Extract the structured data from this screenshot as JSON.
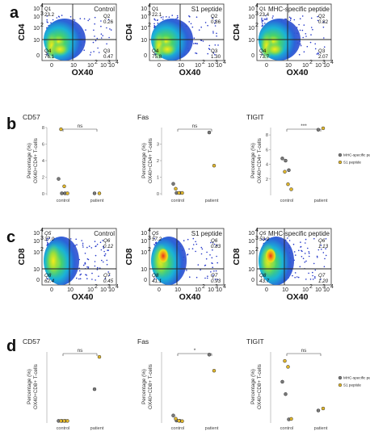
{
  "chart_data": [
    {
      "type": "scatter",
      "panel": "a",
      "y_marker": "CD4",
      "xlabel": "OX40",
      "x_ticks": [
        "0",
        "10",
        "10",
        "10",
        "10"
      ],
      "x_tick_sups": [
        "",
        "",
        "2",
        "3",
        "4"
      ],
      "y_ticks": [
        "0",
        "10",
        "10",
        "10",
        "10"
      ],
      "y_tick_sups": [
        "",
        "",
        "2",
        "3",
        "4"
      ],
      "plots": [
        {
          "title": "Control",
          "quadrants": [
            {
              "name": "Q1",
              "value": "23.2"
            },
            {
              "name": "Q2",
              "value": "0.26"
            },
            {
              "name": "Q3",
              "value": "0.47"
            },
            {
              "name": "Q4",
              "value": "76.1"
            }
          ]
        },
        {
          "title": "S1 peptide",
          "quadrants": [
            {
              "name": "Q1",
              "value": "22.1"
            },
            {
              "name": "Q2",
              "value": "0.86"
            },
            {
              "name": "Q3",
              "value": "1.30"
            },
            {
              "name": "Q4",
              "value": "75.8"
            }
          ]
        },
        {
          "title": "MHC-specific peptide",
          "quadrants": [
            {
              "name": "Q1",
              "value": "23.4"
            },
            {
              "name": "Q2",
              "value": "0.82"
            },
            {
              "name": "Q3",
              "value": "2.07"
            },
            {
              "name": "Q4",
              "value": "73.7"
            }
          ]
        }
      ]
    },
    {
      "type": "scatter",
      "panel": "b",
      "categories": [
        "control",
        "patient"
      ],
      "legend": [
        "MHC-specific peptide",
        "S1 peptide"
      ],
      "series_colors": [
        "#7a7a7a",
        "#e3b82b"
      ],
      "plots": [
        {
          "title": "CD57",
          "ylabel_line1": "Percentage (%)",
          "ylabel_line2": "OX40+CD4+ T-cells",
          "ylim": [
            0,
            8
          ],
          "yticks": [
            0,
            2,
            4,
            6,
            8
          ],
          "significance": "ns",
          "series": [
            {
              "name": "MHC-specific peptide",
              "points": [
                [
                  0,
                  1.8
                ],
                [
                  0,
                  0.05
                ],
                [
                  0,
                  0.05
                ],
                [
                  1,
                  0.05
                ]
              ]
            },
            {
              "name": "S1 peptide",
              "points": [
                [
                  0,
                  7.8
                ],
                [
                  0,
                  0.9
                ],
                [
                  0,
                  0.05
                ],
                [
                  1,
                  0.05
                ]
              ]
            }
          ]
        },
        {
          "title": "Fas",
          "ylabel_line1": "Percentage (%)",
          "ylabel_line2": "OX40+CD4+ T-cells",
          "ylim": [
            0,
            4
          ],
          "yticks": [
            0,
            1,
            2,
            3
          ],
          "significance": "ns",
          "series": [
            {
              "name": "MHC-specific peptide",
              "points": [
                [
                  0,
                  0.6
                ],
                [
                  0,
                  0.05
                ],
                [
                  0,
                  0.05
                ],
                [
                  1,
                  3.7
                ]
              ]
            },
            {
              "name": "S1 peptide",
              "points": [
                [
                  0,
                  0.3
                ],
                [
                  0,
                  0.05
                ],
                [
                  0,
                  0.05
                ],
                [
                  1,
                  1.7
                ]
              ]
            }
          ]
        },
        {
          "title": "TIGIT",
          "ylabel_line1": "Percentage (%)",
          "ylabel_line2": "OX40+CD4+ T-cells",
          "ylim": [
            0,
            9
          ],
          "yticks": [
            2,
            4,
            6,
            8
          ],
          "significance": "***",
          "series": [
            {
              "name": "MHC-specific peptide",
              "points": [
                [
                  0,
                  4.8
                ],
                [
                  0,
                  4.5
                ],
                [
                  0,
                  3.2
                ],
                [
                  1,
                  8.7
                ]
              ]
            },
            {
              "name": "S1 peptide",
              "points": [
                [
                  0,
                  3.0
                ],
                [
                  0,
                  1.3
                ],
                [
                  0,
                  0.6
                ],
                [
                  1,
                  8.9
                ]
              ]
            }
          ]
        }
      ]
    },
    {
      "type": "scatter",
      "panel": "c",
      "y_marker": "CD8",
      "xlabel": "OX40",
      "x_ticks": [
        "0",
        "10",
        "10",
        "10",
        "10"
      ],
      "x_tick_sups": [
        "",
        "",
        "2",
        "3",
        "4"
      ],
      "y_ticks": [
        "0",
        "10",
        "10",
        "10",
        "10"
      ],
      "y_tick_sups": [
        "",
        "",
        "2",
        "3",
        "4"
      ],
      "plots": [
        {
          "title": "Control",
          "quadrants": [
            {
              "name": "Q5",
              "value": "37.0"
            },
            {
              "name": "Q6",
              "value": "0.12"
            },
            {
              "name": "Q7",
              "value": "0.45"
            },
            {
              "name": "Q8",
              "value": "62.4"
            }
          ]
        },
        {
          "title": "S1 peptide",
          "quadrants": [
            {
              "name": "Q5",
              "value": "57.2"
            },
            {
              "name": "Q6",
              "value": "0.83"
            },
            {
              "name": "Q7",
              "value": "0.93"
            },
            {
              "name": "Q8",
              "value": "41.1"
            }
          ]
        },
        {
          "title": "MHC-specific peptide",
          "quadrants": [
            {
              "name": "Q5",
              "value": "53.9"
            },
            {
              "name": "Q6",
              "value": "1.13"
            },
            {
              "name": "Q7",
              "value": "1.20"
            },
            {
              "name": "Q8",
              "value": "43.7"
            }
          ]
        }
      ]
    },
    {
      "type": "scatter",
      "panel": "d",
      "categories": [
        "control",
        "patient"
      ],
      "legend": [
        "MHC-specific peptide",
        "S1 peptide"
      ],
      "series_colors": [
        "#7a7a7a",
        "#e3b82b"
      ],
      "plots": [
        {
          "title": "CD57",
          "ylabel_line1": "Percentage (%)",
          "ylabel_line2": "OX40+CD8+ T-cells",
          "ylim": [
            0,
            2.8
          ],
          "yticks": [],
          "significance": "ns",
          "series": [
            {
              "name": "MHC-specific peptide",
              "points": [
                [
                  0,
                  0.02
                ],
                [
                  0,
                  0.02
                ],
                [
                  0,
                  0.02
                ],
                [
                  1,
                  1.3
                ]
              ]
            },
            {
              "name": "S1 peptide",
              "points": [
                [
                  0,
                  0.02
                ],
                [
                  0,
                  0.02
                ],
                [
                  0,
                  0.02
                ],
                [
                  1,
                  2.6
                ]
              ]
            }
          ]
        },
        {
          "title": "Fas",
          "ylabel_line1": "Percentage (%)",
          "ylabel_line2": "OX40+CD8+ T-cells",
          "ylim": [
            0,
            26
          ],
          "yticks": [],
          "significance": "*",
          "series": [
            {
              "name": "MHC-specific peptide",
              "points": [
                [
                  0,
                  2.2
                ],
                [
                  0,
                  0.3
                ],
                [
                  0,
                  0.2
                ],
                [
                  1,
                  25
                ]
              ]
            },
            {
              "name": "S1 peptide",
              "points": [
                [
                  0,
                  1.0
                ],
                [
                  0,
                  0.2
                ],
                [
                  0,
                  0.1
                ],
                [
                  1,
                  19
                ]
              ]
            }
          ]
        },
        {
          "title": "TIGIT",
          "ylabel_line1": "Percentage (%)",
          "ylabel_line2": "OX40+CD8+ T-cells",
          "ylim": [
            0,
            14
          ],
          "yticks": [],
          "significance": "ns",
          "series": [
            {
              "name": "MHC-specific peptide",
              "points": [
                [
                  0,
                  8.0
                ],
                [
                  0,
                  5.5
                ],
                [
                  0,
                  0.4
                ],
                [
                  1,
                  2.2
                ]
              ]
            },
            {
              "name": "S1 peptide",
              "points": [
                [
                  0,
                  12.2
                ],
                [
                  0,
                  11.0
                ],
                [
                  0,
                  0.5
                ],
                [
                  1,
                  2.6
                ]
              ]
            }
          ]
        }
      ]
    }
  ]
}
